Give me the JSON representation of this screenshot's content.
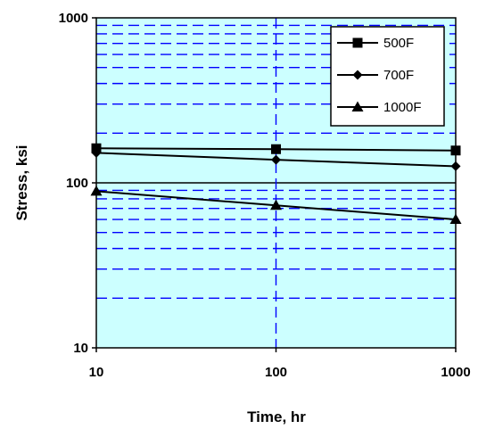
{
  "chart_data": {
    "type": "line",
    "x_scale": "log",
    "y_scale": "log",
    "xlim": [
      10,
      1000
    ],
    "ylim": [
      10,
      1000
    ],
    "x_ticks": [
      "10",
      "100",
      "1000"
    ],
    "y_ticks": [
      "10",
      "100",
      "1000"
    ],
    "xlabel": "Time, hr",
    "ylabel": "Stress, ksi",
    "grid": true,
    "legend_position": "top-right",
    "plot_background": "#ccffff",
    "series": [
      {
        "name": "500F",
        "marker": "square",
        "x": [
          10,
          100,
          1000
        ],
        "y": [
          162,
          160,
          157
        ]
      },
      {
        "name": "700F",
        "marker": "diamond",
        "x": [
          10,
          100,
          1000
        ],
        "y": [
          152,
          138,
          126
        ]
      },
      {
        "name": "1000F",
        "marker": "triangle",
        "x": [
          10,
          100,
          1000
        ],
        "y": [
          89,
          73,
          60
        ]
      }
    ]
  }
}
